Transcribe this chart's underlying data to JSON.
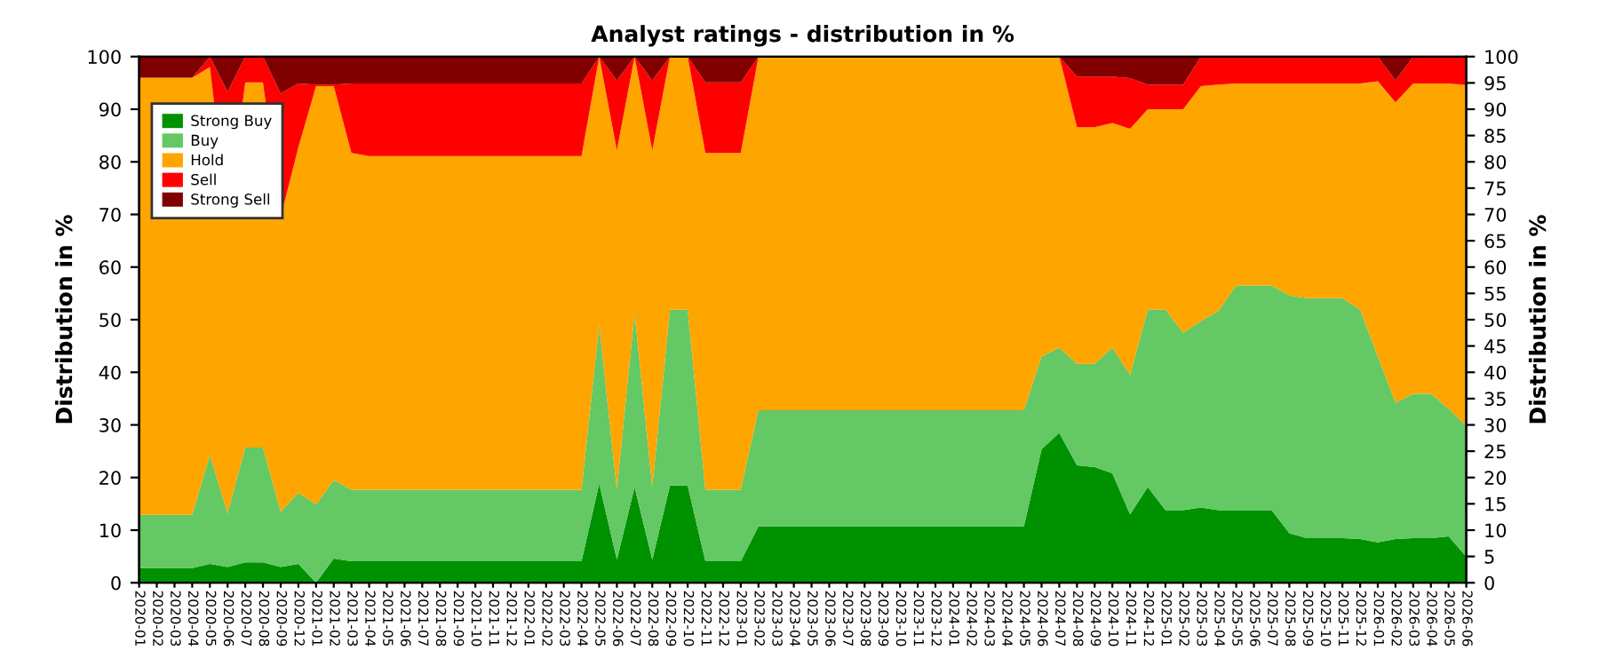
{
  "chart_data": {
    "type": "area",
    "stacked": true,
    "title": "Analyst ratings - distribution in %",
    "ylabel": "Distribution in %",
    "y2label": "Distribution in %",
    "categories": [
      "2020-01",
      "2020-02",
      "2020-03",
      "2020-04",
      "2020-05",
      "2020-06",
      "2020-07",
      "2020-08",
      "2020-09",
      "2020-12",
      "2021-01",
      "2021-02",
      "2021-03",
      "2021-04",
      "2021-05",
      "2021-06",
      "2021-07",
      "2021-08",
      "2021-09",
      "2021-10",
      "2021-11",
      "2021-12",
      "2022-01",
      "2022-02",
      "2022-03",
      "2022-04",
      "2022-05",
      "2022-06",
      "2022-07",
      "2022-08",
      "2022-09",
      "2022-10",
      "2022-11",
      "2022-12",
      "2023-01",
      "2023-02",
      "2023-03",
      "2023-04",
      "2023-05",
      "2023-06",
      "2023-07",
      "2023-08",
      "2023-09",
      "2023-10",
      "2023-11",
      "2023-12",
      "2024-01",
      "2024-02",
      "2024-03",
      "2024-04",
      "2024-05",
      "2024-06",
      "2024-07",
      "2024-08",
      "2024-09",
      "2024-10",
      "2024-11",
      "2024-12",
      "2025-01",
      "2025-02",
      "2025-03",
      "2025-04",
      "2025-05",
      "2025-06",
      "2025-07",
      "2025-08",
      "2025-09",
      "2025-10",
      "2025-11",
      "2025-12",
      "2026-01",
      "2026-02",
      "2026-03",
      "2026-04",
      "2026-05",
      "2026-06"
    ],
    "series": [
      {
        "name": "Strong Buy",
        "color": "#009100",
        "values": [
          2.8,
          2.8,
          2.8,
          2.8,
          3.6,
          3,
          3.9,
          3.9,
          3,
          3.6,
          0,
          4.6,
          4.1,
          4.1,
          4.1,
          4.1,
          4.1,
          4.1,
          4.1,
          4.1,
          4.1,
          4.1,
          4.1,
          4.1,
          4.1,
          4.1,
          18.8,
          4.4,
          18.2,
          4.4,
          18.5,
          18.5,
          4.1,
          4.1,
          4.1,
          10.7,
          10.7,
          10.7,
          10.7,
          10.7,
          10.7,
          10.7,
          10.7,
          10.7,
          10.7,
          10.7,
          10.7,
          10.7,
          10.7,
          10.7,
          10.7,
          25.4,
          28.5,
          22.3,
          22,
          20.8,
          13,
          18.2,
          13.8,
          13.8,
          14.3,
          13.8,
          13.8,
          13.8,
          13.8,
          9.4,
          8.5,
          8.5,
          8.5,
          8.3,
          7.7,
          8.3,
          8.5,
          8.5,
          8.8,
          5
        ]
      },
      {
        "name": "Buy",
        "color": "#64c864",
        "values": [
          10.1,
          10.1,
          10.1,
          10.1,
          20.7,
          10.2,
          21.8,
          21.8,
          10.5,
          13.5,
          14.9,
          14.9,
          13.6,
          13.6,
          13.6,
          13.6,
          13.6,
          13.6,
          13.6,
          13.6,
          13.6,
          13.6,
          13.6,
          13.6,
          13.6,
          13.6,
          30.1,
          13.3,
          33.1,
          13.8,
          33.4,
          33.4,
          13.6,
          13.6,
          13.6,
          22.1,
          22.1,
          22.1,
          22.1,
          22.1,
          22.1,
          22.1,
          22.1,
          22.1,
          22.1,
          22.1,
          22.1,
          22.1,
          22.1,
          22.1,
          22.1,
          17.6,
          16.2,
          19.3,
          19.6,
          23.9,
          26.5,
          33.7,
          38.1,
          33.7,
          35.4,
          37.9,
          42.7,
          42.7,
          42.7,
          45.2,
          45.6,
          45.6,
          45.6,
          43.6,
          35.3,
          25.9,
          27.4,
          27.4,
          24.3,
          24.8
        ]
      },
      {
        "name": "Hold",
        "color": "#ffa500",
        "values": [
          83.1,
          83.1,
          83.1,
          83.1,
          73.7,
          56.3,
          69.4,
          69.4,
          56,
          65.7,
          79.5,
          74.9,
          64,
          63.4,
          63.4,
          63.4,
          63.4,
          63.4,
          63.4,
          63.4,
          63.4,
          63.4,
          63.4,
          63.4,
          63.4,
          63.4,
          51.1,
          64.5,
          48.7,
          64,
          48.1,
          48.1,
          64,
          64,
          64,
          67.2,
          67.2,
          67.2,
          67.2,
          67.2,
          67.2,
          67.2,
          67.2,
          67.2,
          67.2,
          67.2,
          67.2,
          67.2,
          67.2,
          67.2,
          67.2,
          57,
          55.3,
          45,
          45,
          42.7,
          46.8,
          38.1,
          38.1,
          42.5,
          44.7,
          43,
          38.4,
          38.4,
          38.4,
          40.3,
          40.8,
          40.8,
          40.8,
          43,
          52.3,
          57.1,
          59,
          59,
          61.8,
          64.8
        ]
      },
      {
        "name": "Sell",
        "color": "#ff0000",
        "values": [
          0,
          0,
          0,
          0,
          2,
          23.8,
          4.9,
          4.9,
          23.5,
          12.1,
          0.3,
          0.3,
          13.2,
          13.8,
          13.8,
          13.8,
          13.8,
          13.8,
          13.8,
          13.8,
          13.8,
          13.8,
          13.8,
          13.8,
          13.8,
          13.8,
          0,
          13.3,
          0,
          13.3,
          0,
          0,
          13.4,
          13.4,
          13.4,
          0,
          0,
          0,
          0,
          0,
          0,
          0,
          0,
          0,
          0,
          0,
          0,
          0,
          0,
          0,
          0,
          0,
          0,
          9.6,
          9.6,
          8.8,
          9.6,
          4.7,
          4.7,
          4.7,
          5.6,
          5.3,
          5.1,
          5.1,
          5.1,
          5.1,
          5.1,
          5.1,
          5.1,
          5.1,
          4.7,
          4.2,
          5.1,
          5.1,
          5.1,
          5.4
        ]
      },
      {
        "name": "Strong Sell",
        "color": "#800000",
        "values": [
          4,
          4,
          4,
          4,
          0,
          6.7,
          0,
          0,
          7,
          5.1,
          5.3,
          5.3,
          5.1,
          5.1,
          5.1,
          5.1,
          5.1,
          5.1,
          5.1,
          5.1,
          5.1,
          5.1,
          5.1,
          5.1,
          5.1,
          5.1,
          0,
          4.5,
          0,
          4.5,
          0,
          0,
          4.9,
          4.9,
          4.9,
          0,
          0,
          0,
          0,
          0,
          0,
          0,
          0,
          0,
          0,
          0,
          0,
          0,
          0,
          0,
          0,
          0,
          0,
          3.8,
          3.8,
          3.8,
          4.1,
          5.3,
          5.3,
          5.3,
          0,
          0,
          0,
          0,
          0,
          0,
          0,
          0,
          0,
          0,
          0,
          4.5,
          0,
          0,
          0,
          0
        ]
      }
    ],
    "ylim": [
      0,
      100
    ],
    "yticks": [
      0,
      10,
      20,
      30,
      40,
      50,
      60,
      70,
      80,
      90,
      100
    ],
    "y2lim": [
      0,
      100
    ],
    "y2ticks": [
      0,
      5,
      10,
      15,
      20,
      25,
      30,
      35,
      40,
      45,
      50,
      55,
      60,
      65,
      70,
      75,
      80,
      85,
      90,
      95,
      100
    ],
    "grid": "y",
    "legend": "top left"
  }
}
